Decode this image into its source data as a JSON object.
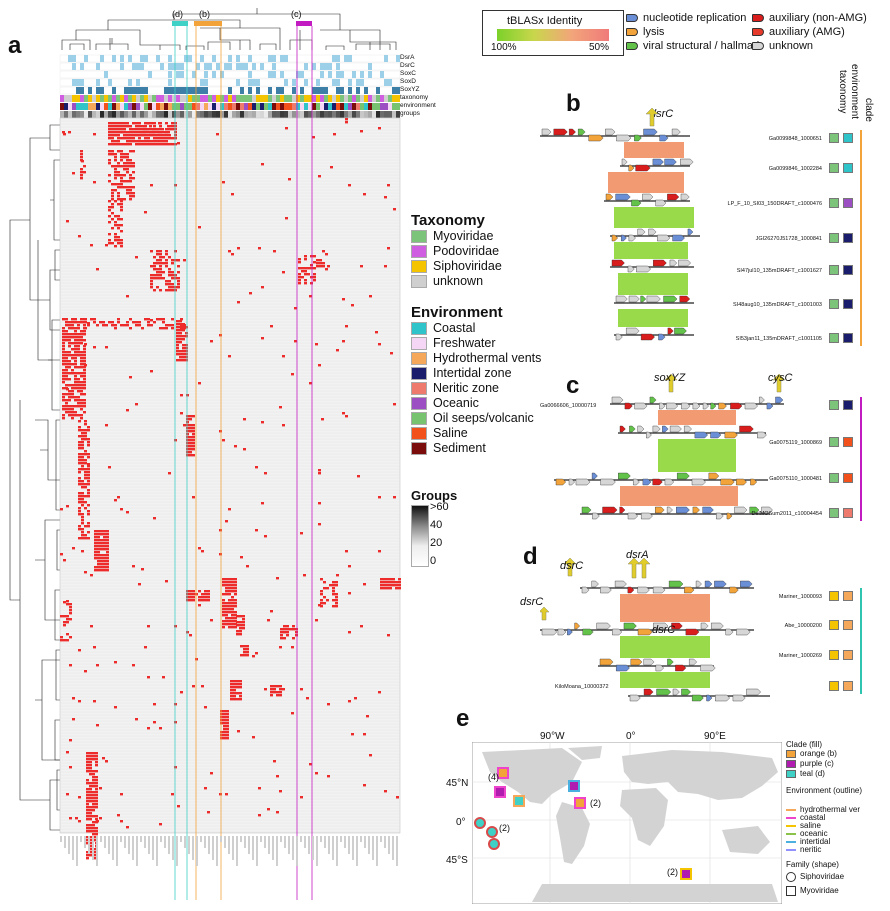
{
  "panel_a": {
    "letter": "a",
    "clade_tags": [
      "(d)",
      "(b)",
      "(c)"
    ],
    "annotation_rows": [
      "DsrA",
      "DsrC",
      "SoxC",
      "SoxD",
      "SoxYZ",
      "taxonomy",
      "environment",
      "groups"
    ]
  },
  "taxonomy_legend": {
    "title": "Taxonomy",
    "items": [
      {
        "label": "Myoviridae",
        "color": "#7bc47a"
      },
      {
        "label": "Podoviridae",
        "color": "#cf5fe0"
      },
      {
        "label": "Siphoviridae",
        "color": "#f5c400"
      },
      {
        "label": "unknown",
        "color": "#cfcfcf"
      }
    ]
  },
  "environment_legend": {
    "title": "Environment",
    "items": [
      {
        "label": "Coastal",
        "color": "#2ec4c9"
      },
      {
        "label": "Freshwater",
        "color": "#f6d6f5"
      },
      {
        "label": "Hydrothermal vents",
        "color": "#f6a85a"
      },
      {
        "label": "Intertidal zone",
        "color": "#1a1d6b"
      },
      {
        "label": "Neritic zone",
        "color": "#ee7a6d"
      },
      {
        "label": "Oceanic",
        "color": "#9b4fc2"
      },
      {
        "label": "Oil seeps/volcanic",
        "color": "#78c36f"
      },
      {
        "label": "Saline",
        "color": "#f2511c"
      },
      {
        "label": "Sediment",
        "color": "#7a0c0c"
      }
    ]
  },
  "groups_legend": {
    "title": "Groups",
    "ticks": [
      ">60",
      "40",
      "20",
      "0"
    ]
  },
  "top_legend": {
    "identity_title": "tBLASx Identity",
    "identity_low": "100%",
    "identity_high": "50%",
    "gene_classes": [
      {
        "label": "nucleotide replication",
        "color": "#6b8fd6"
      },
      {
        "label": "lysis",
        "color": "#f2a33a"
      },
      {
        "label": "viral structural / hallmark",
        "color": "#63c24a"
      },
      {
        "label": "auxiliary (non-AMG)",
        "color": "#d91c1c"
      },
      {
        "label": "auxiliary (AMG)",
        "color": "#e63a2a"
      },
      {
        "label": "unknown",
        "color": "#d6d6d6"
      }
    ]
  },
  "panel_b": {
    "letter": "b",
    "gene_callout": "dsrC",
    "column_headers": [
      "taxonomy",
      "environment",
      "clade"
    ],
    "genomes": [
      "Ga0099848_1000651",
      "Ga0099846_1002284",
      "LP_F_10_SI03_150DRAFT_c1000476",
      "JGI26270J51728_1000841",
      "SI47jul10_135mDRAFT_c1001627",
      "SI48aug10_135mDRAFT_c1001003",
      "SI53jan11_135mDRAFT_c1001105"
    ],
    "tax_colors": [
      "#7bc47a",
      "#7bc47a",
      "#7bc47a",
      "#7bc47a",
      "#7bc47a",
      "#7bc47a",
      "#7bc47a"
    ],
    "env_colors": [
      "#2ec4c9",
      "#2ec4c9",
      "#9b4fc2",
      "#1a1d6b",
      "#1a1d6b",
      "#1a1d6b",
      "#1a1d6b"
    ],
    "clade_color": "#f2a33a"
  },
  "panel_c": {
    "letter": "c",
    "gene_callouts": [
      "soxYZ",
      "cysC"
    ],
    "genomes": [
      "Ga0066606_10000719",
      "Ga0075119_1000869",
      "Ga0075110_1000481",
      "DelMOSum2011_c10004454"
    ],
    "tax_colors": [
      "#7bc47a",
      "#7bc47a",
      "#7bc47a",
      "#7bc47a"
    ],
    "env_colors": [
      "#1a1d6b",
      "#f2511c",
      "#f2511c",
      "#ee7a6d"
    ],
    "clade_color": "#c21bc2"
  },
  "panel_d": {
    "letter": "d",
    "gene_callouts": [
      "dsrC",
      "dsrA",
      "dsrC",
      "dsrC"
    ],
    "genomes": [
      "Mariner_1000093",
      "Abe_10000200",
      "Mariner_1000269",
      "KiloMoana_10000372"
    ],
    "tax_colors": [
      "#f5c400",
      "#f5c400",
      "#f5c400",
      "#f5c400"
    ],
    "env_colors": [
      "#f6a85a",
      "#f6a85a",
      "#f6a85a",
      "#f6a85a"
    ],
    "clade_color": "#2ec4b0"
  },
  "panel_e": {
    "letter": "e",
    "lon_labels": [
      "90°W",
      "0°",
      "90°E"
    ],
    "lat_labels": [
      "45°N",
      "0°",
      "45°S"
    ],
    "counts": [
      "(4)",
      "(2)",
      "(2)",
      "(2)"
    ],
    "legend": {
      "clade_title": "Clade (fill)",
      "clades": [
        {
          "label": "orange (b)",
          "color": "#f2a33a"
        },
        {
          "label": "purple (c)",
          "color": "#b01cb0"
        },
        {
          "label": "teal (d)",
          "color": "#3fd0c6"
        }
      ],
      "env_title": "Environment (outline)",
      "envs": [
        {
          "label": "hydrothermal ver",
          "color": "#f6a85a"
        },
        {
          "label": "coastal",
          "color": "#ee44cc"
        },
        {
          "label": "saline",
          "color": "#f5c400"
        },
        {
          "label": "oceanic",
          "color": "#8bc34a"
        },
        {
          "label": "intertidal",
          "color": "#4ab0e0"
        },
        {
          "label": "neritic",
          "color": "#9090ff"
        }
      ],
      "family_title": "Family (shape)",
      "families": [
        "Siphoviridae",
        "Myoviridae"
      ]
    }
  }
}
